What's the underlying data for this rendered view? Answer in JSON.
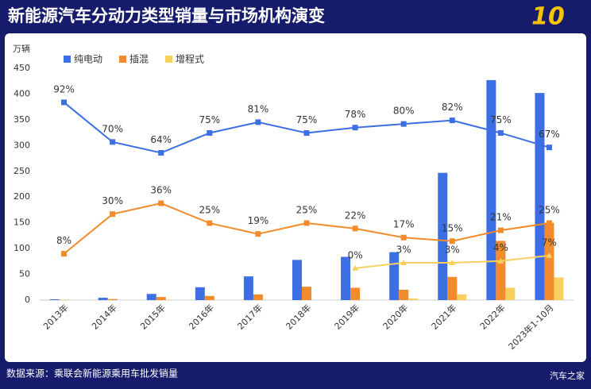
{
  "chart_data": {
    "type": "bar",
    "title": "新能源汽车分动力类型销量与市场机构演变",
    "y_label": "万辆",
    "source": "数据来源：乘联会新能源乘用车批发销量",
    "watermark": "汽车之家",
    "logo": "10",
    "categories": [
      "2013年",
      "2014年",
      "2015年",
      "2016年",
      "2017年",
      "2018年",
      "2019年",
      "2020年",
      "2021年",
      "2022年",
      "2023年1-10月"
    ],
    "ylim": [
      0,
      450
    ],
    "yticks": [
      0,
      50,
      100,
      150,
      200,
      250,
      300,
      350,
      400,
      450
    ],
    "y2lim": [
      -17.7,
      110.9
    ],
    "legend": "top-left",
    "series": [
      {
        "name": "纯电动",
        "color": "#3b6fe3",
        "values": [
          1.5,
          4.5,
          12,
          25,
          46,
          78,
          84,
          93,
          247,
          427,
          402
        ]
      },
      {
        "name": "插混",
        "color": "#f28b2b",
        "values": [
          0.5,
          2,
          6,
          8,
          11,
          26,
          24,
          20,
          45,
          115,
          150
        ]
      },
      {
        "name": "增程式",
        "color": "#f9cf5e",
        "values": [
          null,
          null,
          null,
          null,
          null,
          null,
          0.3,
          3,
          11,
          24,
          44
        ]
      },
      {
        "type": "line",
        "axis": "y2",
        "color": "#3b6fe3",
        "values": [
          92,
          70,
          64,
          75,
          81,
          75,
          78,
          80,
          82,
          75,
          67
        ],
        "value_labels": [
          "92%",
          "70%",
          "64%",
          "75%",
          "81%",
          "75%",
          "78%",
          "80%",
          "82%",
          "75%",
          "67%"
        ]
      },
      {
        "type": "line",
        "axis": "y2",
        "color": "#f28b2b",
        "values": [
          8,
          30,
          36,
          25,
          19,
          25,
          22,
          17,
          15,
          21,
          25
        ],
        "value_labels": [
          "8%",
          "30%",
          "36%",
          "25%",
          "19%",
          "25%",
          "22%",
          "17%",
          "15%",
          "21%",
          "25%"
        ]
      },
      {
        "type": "line",
        "axis": "y2",
        "color": "#f9cf5e",
        "values": [
          null,
          null,
          null,
          null,
          null,
          null,
          0,
          3,
          3,
          4,
          7
        ],
        "value_labels": [
          null,
          null,
          null,
          null,
          null,
          null,
          "0%",
          "3%",
          "3%",
          "4%",
          "7%"
        ]
      }
    ]
  }
}
